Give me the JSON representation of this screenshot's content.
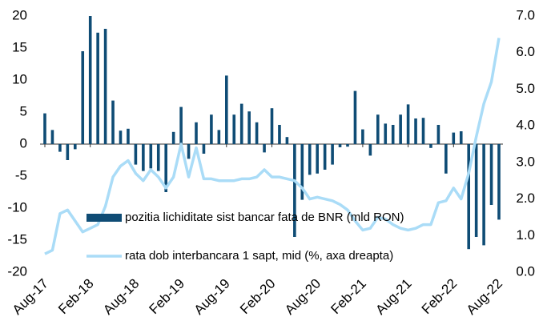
{
  "chart_data": {
    "type": "bar-line",
    "categories": [
      "Aug-17",
      null,
      null,
      null,
      null,
      null,
      "Feb-18",
      null,
      null,
      null,
      null,
      null,
      "Aug-18",
      null,
      null,
      null,
      null,
      null,
      "Feb-19",
      null,
      null,
      null,
      null,
      null,
      "Aug-19",
      null,
      null,
      null,
      null,
      null,
      "Feb-20",
      null,
      null,
      null,
      null,
      null,
      "Aug-20",
      null,
      null,
      null,
      null,
      null,
      "Feb-21",
      null,
      null,
      null,
      null,
      null,
      "Aug-21",
      null,
      null,
      null,
      null,
      null,
      "Feb-22",
      null,
      null,
      null,
      null,
      null,
      "Aug-22"
    ],
    "series": [
      {
        "name": "pozitia lichiditate sist bancar fata de BNR (mld RON)",
        "type": "bar",
        "color": "#0f4c75",
        "values": [
          4.8,
          2.2,
          -1.2,
          -2.5,
          -0.8,
          14.5,
          20,
          17.4,
          18,
          6.8,
          2.1,
          2.4,
          -3.2,
          -4.2,
          -3.8,
          -4.2,
          -7.5,
          1.9,
          5.8,
          -2.3,
          3.4,
          -1.5,
          4.6,
          2.2,
          10.7,
          4.6,
          6.3,
          5.1,
          3.4,
          -1.3,
          5.6,
          3.0,
          1.1,
          -14.5,
          -8.7,
          -4.8,
          -4.6,
          -4,
          -3.2,
          -0.5,
          -0.4,
          8.3,
          2.3,
          -1.8,
          4.6,
          3.2,
          3,
          4.6,
          6.2,
          4,
          4.1,
          -0.6,
          3,
          -4.6,
          1.8,
          2,
          -16.4,
          -14.5,
          -15.8,
          -9.5,
          -11.8
        ]
      },
      {
        "name": "rata dob interbancara 1 sapt, mid (%, axa dreapta)",
        "type": "line",
        "axis": "y2",
        "color": "#aadcf7",
        "values": [
          0.5,
          0.6,
          1.6,
          1.7,
          1.4,
          1.1,
          1.2,
          1.3,
          1.8,
          2.6,
          2.9,
          3.05,
          2.7,
          2.5,
          2.8,
          2.6,
          2.3,
          2.6,
          3.5,
          2.6,
          3.4,
          2.55,
          2.55,
          2.5,
          2.5,
          2.5,
          2.55,
          2.55,
          2.6,
          2.8,
          2.6,
          2.6,
          2.55,
          2.5,
          2.3,
          2.0,
          2.05,
          2.0,
          1.95,
          1.85,
          1.7,
          1.4,
          1.15,
          1.2,
          1.5,
          1.45,
          1.3,
          1.2,
          1.15,
          1.2,
          1.3,
          1.3,
          1.9,
          1.95,
          2.3,
          2.0,
          2.7,
          3.7,
          4.6,
          5.2,
          6.4
        ]
      }
    ],
    "ylim": [
      -20,
      20
    ],
    "yticks": [
      -20,
      -15,
      -10,
      -5,
      0,
      5,
      10,
      15,
      20
    ],
    "y2lim": [
      0,
      7
    ],
    "y2ticks": [
      {
        "value": 0,
        "label": "0.0"
      },
      {
        "value": 1,
        "label": "1.0"
      },
      {
        "value": 2,
        "label": "2.0"
      },
      {
        "value": 3,
        "label": "3.0"
      },
      {
        "value": 4,
        "label": "4.0"
      },
      {
        "value": 5,
        "label": "5.0"
      },
      {
        "value": 6,
        "label": "6.0"
      },
      {
        "value": 7,
        "label": "7.0"
      }
    ],
    "legend": "center"
  }
}
